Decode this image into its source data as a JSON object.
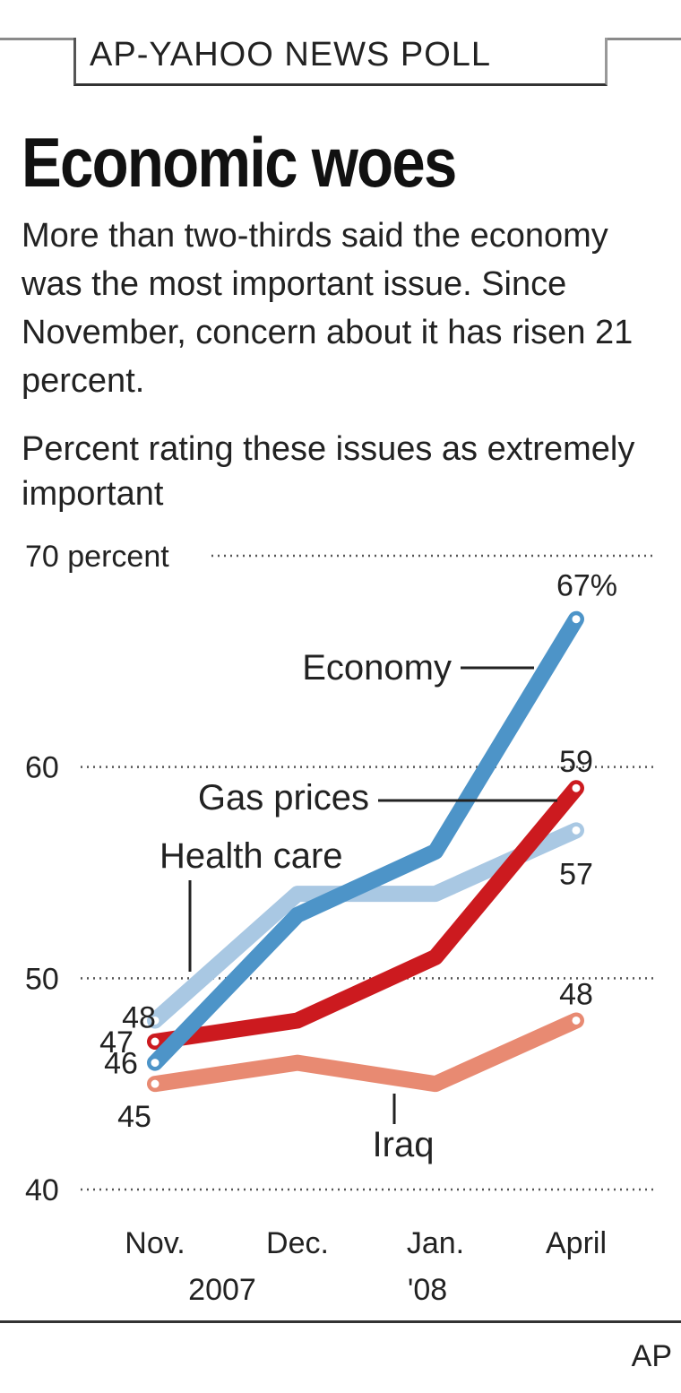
{
  "header": {
    "kicker": "AP-YAHOO NEWS POLL",
    "title": "Economic woes",
    "subtitle": "More than two-thirds said the economy was the most important issue. Since November, concern about it has risen 21 percent.",
    "units_label": "Percent rating these issues as extremely important"
  },
  "footer": {
    "credit": "AP"
  },
  "chart_data": {
    "type": "line",
    "title": "Economic woes",
    "subtitle": "Percent rating these issues as extremely important",
    "xlabel": "",
    "ylabel": "percent",
    "categories": [
      "Nov.",
      "Dec.",
      "Jan.",
      "April"
    ],
    "category_sublabels": [
      "2007",
      "",
      "'08",
      ""
    ],
    "ylim": [
      40,
      70
    ],
    "yticks": [
      40,
      50,
      60,
      70
    ],
    "ytick_labels": [
      "40",
      "50",
      "60",
      "70 percent"
    ],
    "grid": true,
    "legend": "inline-labels",
    "series": [
      {
        "name": "Iraq",
        "color": "#e88a72",
        "values": [
          45,
          46,
          45,
          48
        ],
        "start_label": "45",
        "end_label": "48"
      },
      {
        "name": "Health care",
        "color": "#a9c8e3",
        "values": [
          48,
          54,
          54,
          57
        ],
        "start_label": "48",
        "end_label": "57"
      },
      {
        "name": "Gas prices",
        "color": "#cc1a1f",
        "values": [
          47,
          48,
          51,
          59
        ],
        "start_label": "47",
        "end_label": "59"
      },
      {
        "name": "Economy",
        "color": "#4d94c8",
        "values": [
          46,
          53,
          56,
          67
        ],
        "start_label": "46",
        "end_label": "67%"
      }
    ]
  }
}
